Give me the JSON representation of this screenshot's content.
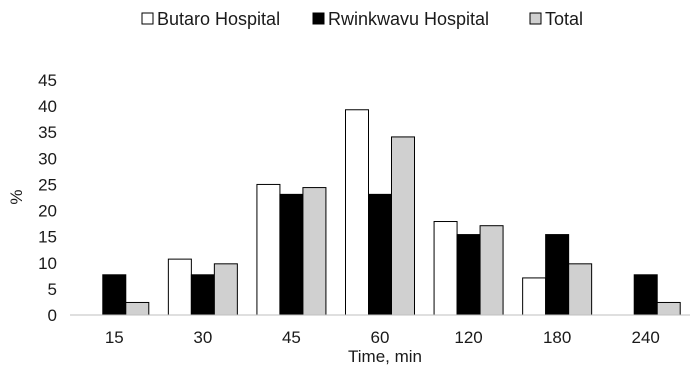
{
  "chart_data": {
    "type": "bar",
    "categories": [
      "15",
      "30",
      "45",
      "60",
      "120",
      "180",
      "240"
    ],
    "series": [
      {
        "name": "Butaro Hospital",
        "values": [
          0,
          10.7,
          25.0,
          39.3,
          17.9,
          7.1,
          0
        ],
        "color": "#ffffff"
      },
      {
        "name": "Rwinkwavu Hospital",
        "values": [
          7.7,
          7.7,
          23.1,
          23.1,
          15.4,
          15.4,
          7.7
        ],
        "color": "#000000"
      },
      {
        "name": "Total",
        "values": [
          2.4,
          9.8,
          24.4,
          34.1,
          17.1,
          9.8,
          2.4
        ],
        "color": "#d0d0d0"
      }
    ],
    "xlabel": "Time, min",
    "ylabel": "%",
    "ylim": [
      0,
      45
    ],
    "yticks": [
      "0",
      "5",
      "10",
      "15",
      "20",
      "25",
      "30",
      "35",
      "40",
      "45"
    ],
    "grid": false,
    "legend_position": "top-center",
    "bar_stroke": "#000000"
  }
}
